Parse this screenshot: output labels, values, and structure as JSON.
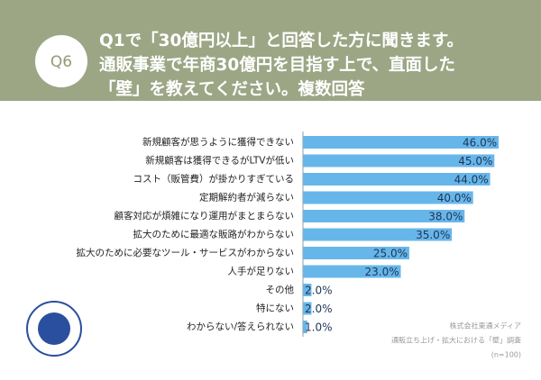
{
  "chart_data": {
    "type": "barh",
    "question_label": "Q6",
    "title_lines": [
      "Q1で「30億円以上」と回答した方に聞きます。",
      "通販事業で年商30億円を目指す上で、直面した",
      "「壁」を教えてください。複数回答"
    ],
    "categories": [
      "新規顧客が思うように獲得できない",
      "新規顧客は獲得できるがLTVが低い",
      "コスト（販管費）が掛かりすぎている",
      "定期解約者が減らない",
      "顧客対応が煩雑になり運用がまとまらない",
      "拡大のために最適な販路がわからない",
      "拡大のために必要なツール・サービスがわからない",
      "人手が足りない",
      "その他",
      "特にない",
      "わからない/答えられない"
    ],
    "values": [
      46,
      45,
      44,
      40,
      38,
      35,
      25,
      23,
      2,
      2,
      1
    ],
    "value_labels": [
      "46.0%",
      "45.0%",
      "44.0%",
      "40.0%",
      "38.0%",
      "35.0%",
      "25.0%",
      "23.0%",
      "2.0%",
      "2.0%",
      "1.0%"
    ],
    "color": "#67b6ea",
    "source": [
      "株式会社東通メディア",
      "通販立ち上げ・拡大における「壁」調査",
      "(n=100)"
    ]
  }
}
